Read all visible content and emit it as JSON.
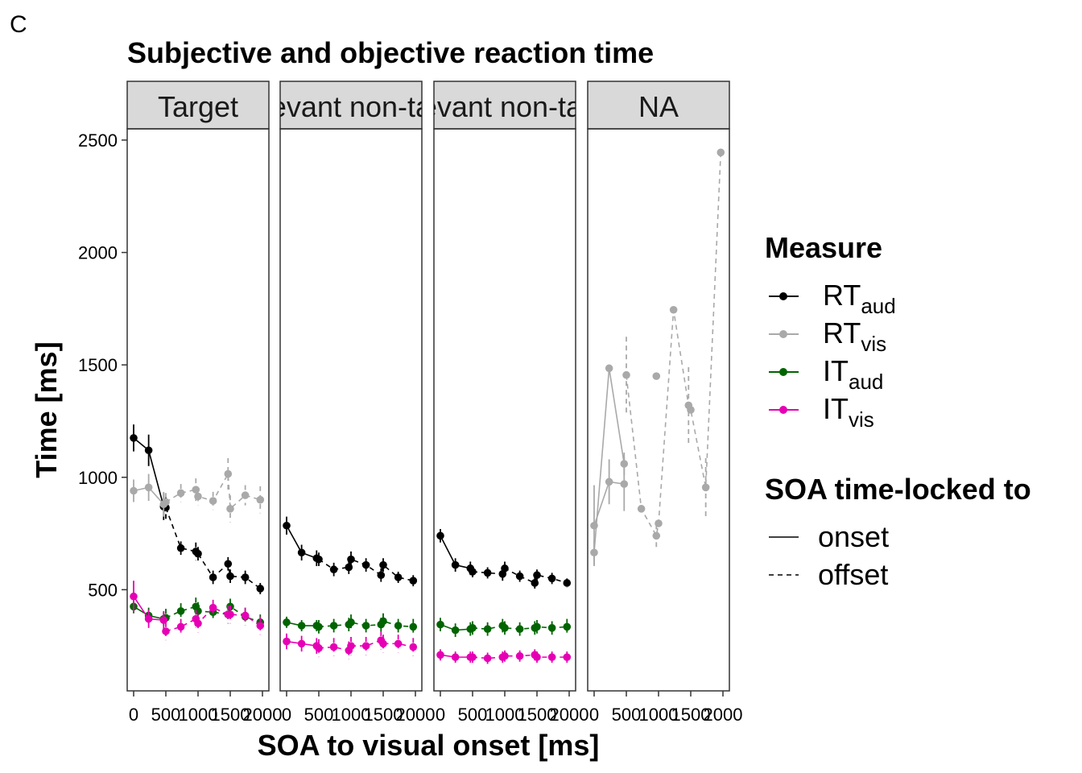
{
  "panel_letter": "C",
  "chart_data": {
    "type": "line",
    "title": "Subjective and objective reaction time",
    "xlabel": "SOA to visual onset [ms]",
    "ylabel": "Time [ms]",
    "ylim": [
      50,
      2550
    ],
    "xlim": [
      -100,
      2100
    ],
    "x_ticks": [
      0,
      500,
      1000,
      1500,
      2000
    ],
    "y_ticks": [
      500,
      1000,
      1500,
      2000,
      2500
    ],
    "grid": false,
    "facets": [
      "Target",
      "Irrelevant non-target",
      "Relevant non-target",
      "NA"
    ],
    "legend": {
      "placement": "right",
      "measure_title": "Measure",
      "measure_items": [
        {
          "key": "RTaud",
          "base": "RT",
          "sub": "aud",
          "color": "#000000"
        },
        {
          "key": "RTvis",
          "base": "RT",
          "sub": "vis",
          "color": "#A9A9A9"
        },
        {
          "key": "ITaud",
          "base": "IT",
          "sub": "aud",
          "color": "#006400"
        },
        {
          "key": "ITvis",
          "base": "IT",
          "sub": "vis",
          "color": "#E600B4"
        }
      ],
      "soa_title": "SOA time-locked to",
      "soa_items": [
        {
          "key": "onset",
          "label": "onset",
          "dash": "solid"
        },
        {
          "key": "offset",
          "label": "offset",
          "dash": "dashed"
        }
      ]
    },
    "panels": [
      {
        "facet": "Target",
        "series": [
          {
            "measure": "RTaud",
            "lock": "onset",
            "x": [
              0,
              233,
              466
            ],
            "y": [
              1175,
              1120,
              870
            ],
            "err": [
              60,
              70,
              60
            ]
          },
          {
            "measure": "RTaud",
            "lock": "offset",
            "x": [
              500,
              733,
              966,
              1000,
              1233,
              1466,
              1500,
              1733,
              1966
            ],
            "y": [
              865,
              685,
              670,
              660,
              555,
              615,
              560,
              555,
              505
            ],
            "err": [
              50,
              30,
              40,
              30,
              30,
              30,
              30,
              30,
              25
            ]
          },
          {
            "measure": "RTvis",
            "lock": "onset",
            "x": [
              0,
              233,
              466
            ],
            "y": [
              940,
              955,
              880
            ],
            "err": [
              50,
              60,
              55
            ]
          },
          {
            "measure": "RTvis",
            "lock": "offset",
            "x": [
              500,
              733,
              966,
              1000,
              1233,
              1466,
              1500,
              1733,
              1966
            ],
            "y": [
              890,
              930,
              945,
              915,
              895,
              1015,
              860,
              920,
              900
            ],
            "err": [
              40,
              40,
              50,
              40,
              40,
              70,
              60,
              45,
              60
            ]
          },
          {
            "measure": "ITaud",
            "lock": "onset",
            "x": [
              0,
              233,
              466
            ],
            "y": [
              425,
              385,
              370
            ],
            "err": [
              30,
              35,
              30
            ]
          },
          {
            "measure": "ITaud",
            "lock": "offset",
            "x": [
              500,
              733,
              966,
              1000,
              1233,
              1466,
              1500,
              1733,
              1966
            ],
            "y": [
              375,
              405,
              425,
              405,
              400,
              390,
              425,
              380,
              355
            ],
            "err": [
              40,
              35,
              40,
              40,
              35,
              40,
              35,
              40,
              35
            ]
          },
          {
            "measure": "ITvis",
            "lock": "onset",
            "x": [
              0,
              233,
              466
            ],
            "y": [
              470,
              370,
              365
            ],
            "err": [
              70,
              40,
              40
            ]
          },
          {
            "measure": "ITvis",
            "lock": "offset",
            "x": [
              500,
              733,
              966,
              1000,
              1233,
              1466,
              1500,
              1733,
              1966
            ],
            "y": [
              315,
              335,
              370,
              350,
              420,
              390,
              390,
              385,
              340
            ],
            "err": [
              40,
              35,
              40,
              40,
              35,
              40,
              40,
              35,
              40
            ]
          }
        ]
      },
      {
        "facet": "Irrelevant non-target",
        "series": [
          {
            "measure": "RTaud",
            "lock": "onset",
            "x": [
              0,
              233,
              466
            ],
            "y": [
              785,
              665,
              640
            ],
            "err": [
              40,
              35,
              35
            ]
          },
          {
            "measure": "RTaud",
            "lock": "offset",
            "x": [
              500,
              733,
              966,
              1000,
              1233,
              1466,
              1500,
              1733,
              1966
            ],
            "y": [
              635,
              590,
              600,
              635,
              610,
              565,
              610,
              555,
              540
            ],
            "err": [
              30,
              30,
              30,
              35,
              30,
              30,
              30,
              25,
              25
            ]
          },
          {
            "measure": "ITaud",
            "lock": "onset",
            "x": [
              0,
              233,
              466
            ],
            "y": [
              355,
              340,
              340
            ],
            "err": [
              25,
              25,
              25
            ]
          },
          {
            "measure": "ITaud",
            "lock": "offset",
            "x": [
              500,
              733,
              966,
              1000,
              1233,
              1466,
              1500,
              1733,
              1966
            ],
            "y": [
              335,
              340,
              345,
              355,
              340,
              345,
              360,
              340,
              335
            ],
            "err": [
              30,
              30,
              30,
              35,
              30,
              30,
              35,
              30,
              35
            ]
          },
          {
            "measure": "ITvis",
            "lock": "onset",
            "x": [
              0,
              233,
              466
            ],
            "y": [
              270,
              260,
              250
            ],
            "err": [
              35,
              35,
              35
            ]
          },
          {
            "measure": "ITvis",
            "lock": "offset",
            "x": [
              500,
              733,
              966,
              1000,
              1233,
              1466,
              1500,
              1733,
              1966
            ],
            "y": [
              240,
              245,
              230,
              250,
              250,
              275,
              260,
              260,
              245
            ],
            "err": [
              40,
              40,
              40,
              40,
              40,
              40,
              40,
              40,
              40
            ]
          }
        ]
      },
      {
        "facet": "Relevant non-target",
        "series": [
          {
            "measure": "RTaud",
            "lock": "onset",
            "x": [
              0,
              233,
              466
            ],
            "y": [
              740,
              610,
              595
            ],
            "err": [
              30,
              30,
              30
            ]
          },
          {
            "measure": "RTaud",
            "lock": "offset",
            "x": [
              500,
              733,
              966,
              1000,
              1233,
              1466,
              1500,
              1733,
              1966
            ],
            "y": [
              580,
              575,
              570,
              595,
              560,
              530,
              565,
              550,
              530
            ],
            "err": [
              25,
              25,
              30,
              30,
              25,
              25,
              25,
              25,
              20
            ]
          },
          {
            "measure": "ITaud",
            "lock": "onset",
            "x": [
              0,
              233,
              466
            ],
            "y": [
              345,
              320,
              325
            ],
            "err": [
              30,
              30,
              30
            ]
          },
          {
            "measure": "ITaud",
            "lock": "offset",
            "x": [
              500,
              733,
              966,
              1000,
              1233,
              1466,
              1500,
              1733,
              1966
            ],
            "y": [
              330,
              325,
              340,
              330,
              325,
              330,
              335,
              330,
              335
            ],
            "err": [
              30,
              30,
              30,
              30,
              30,
              30,
              30,
              30,
              35
            ]
          },
          {
            "measure": "ITvis",
            "lock": "onset",
            "x": [
              0,
              233,
              466
            ],
            "y": [
              210,
              200,
              200
            ],
            "err": [
              25,
              25,
              25
            ]
          },
          {
            "measure": "ITvis",
            "lock": "offset",
            "x": [
              500,
              733,
              966,
              1000,
              1233,
              1466,
              1500,
              1733,
              1966
            ],
            "y": [
              200,
              195,
              200,
              205,
              205,
              210,
              200,
              200,
              200
            ],
            "err": [
              25,
              25,
              25,
              25,
              25,
              25,
              25,
              25,
              25
            ]
          }
        ]
      },
      {
        "facet": "NA",
        "series": [
          {
            "measure": "RTvis",
            "lock": "onset",
            "x": [
              0,
              233,
              466
            ],
            "y": [
              665,
              1485,
              1060
            ],
            "err": [
              55,
              0,
              50
            ]
          },
          {
            "measure": "RTvis",
            "lock": "onset",
            "x": [
              0,
              233,
              466
            ],
            "y": [
              785,
              980,
              970
            ],
            "err": [
              180,
              100,
              120
            ]
          },
          {
            "measure": "RTvis",
            "lock": "offset",
            "x": [
              500,
              733,
              966,
              1000,
              1233,
              1466,
              1500,
              1733,
              1966
            ],
            "y": [
              1455,
              860,
              740,
              795,
              1745,
              1320,
              1300,
              955,
              2445
            ],
            "err": [
              170,
              0,
              50,
              0,
              0,
              170,
              0,
              130,
              0
            ]
          },
          {
            "measure": "RTvis",
            "lock": "offset",
            "x": [
              966
            ],
            "y": [
              1450
            ],
            "err": [
              0
            ]
          }
        ]
      }
    ]
  }
}
